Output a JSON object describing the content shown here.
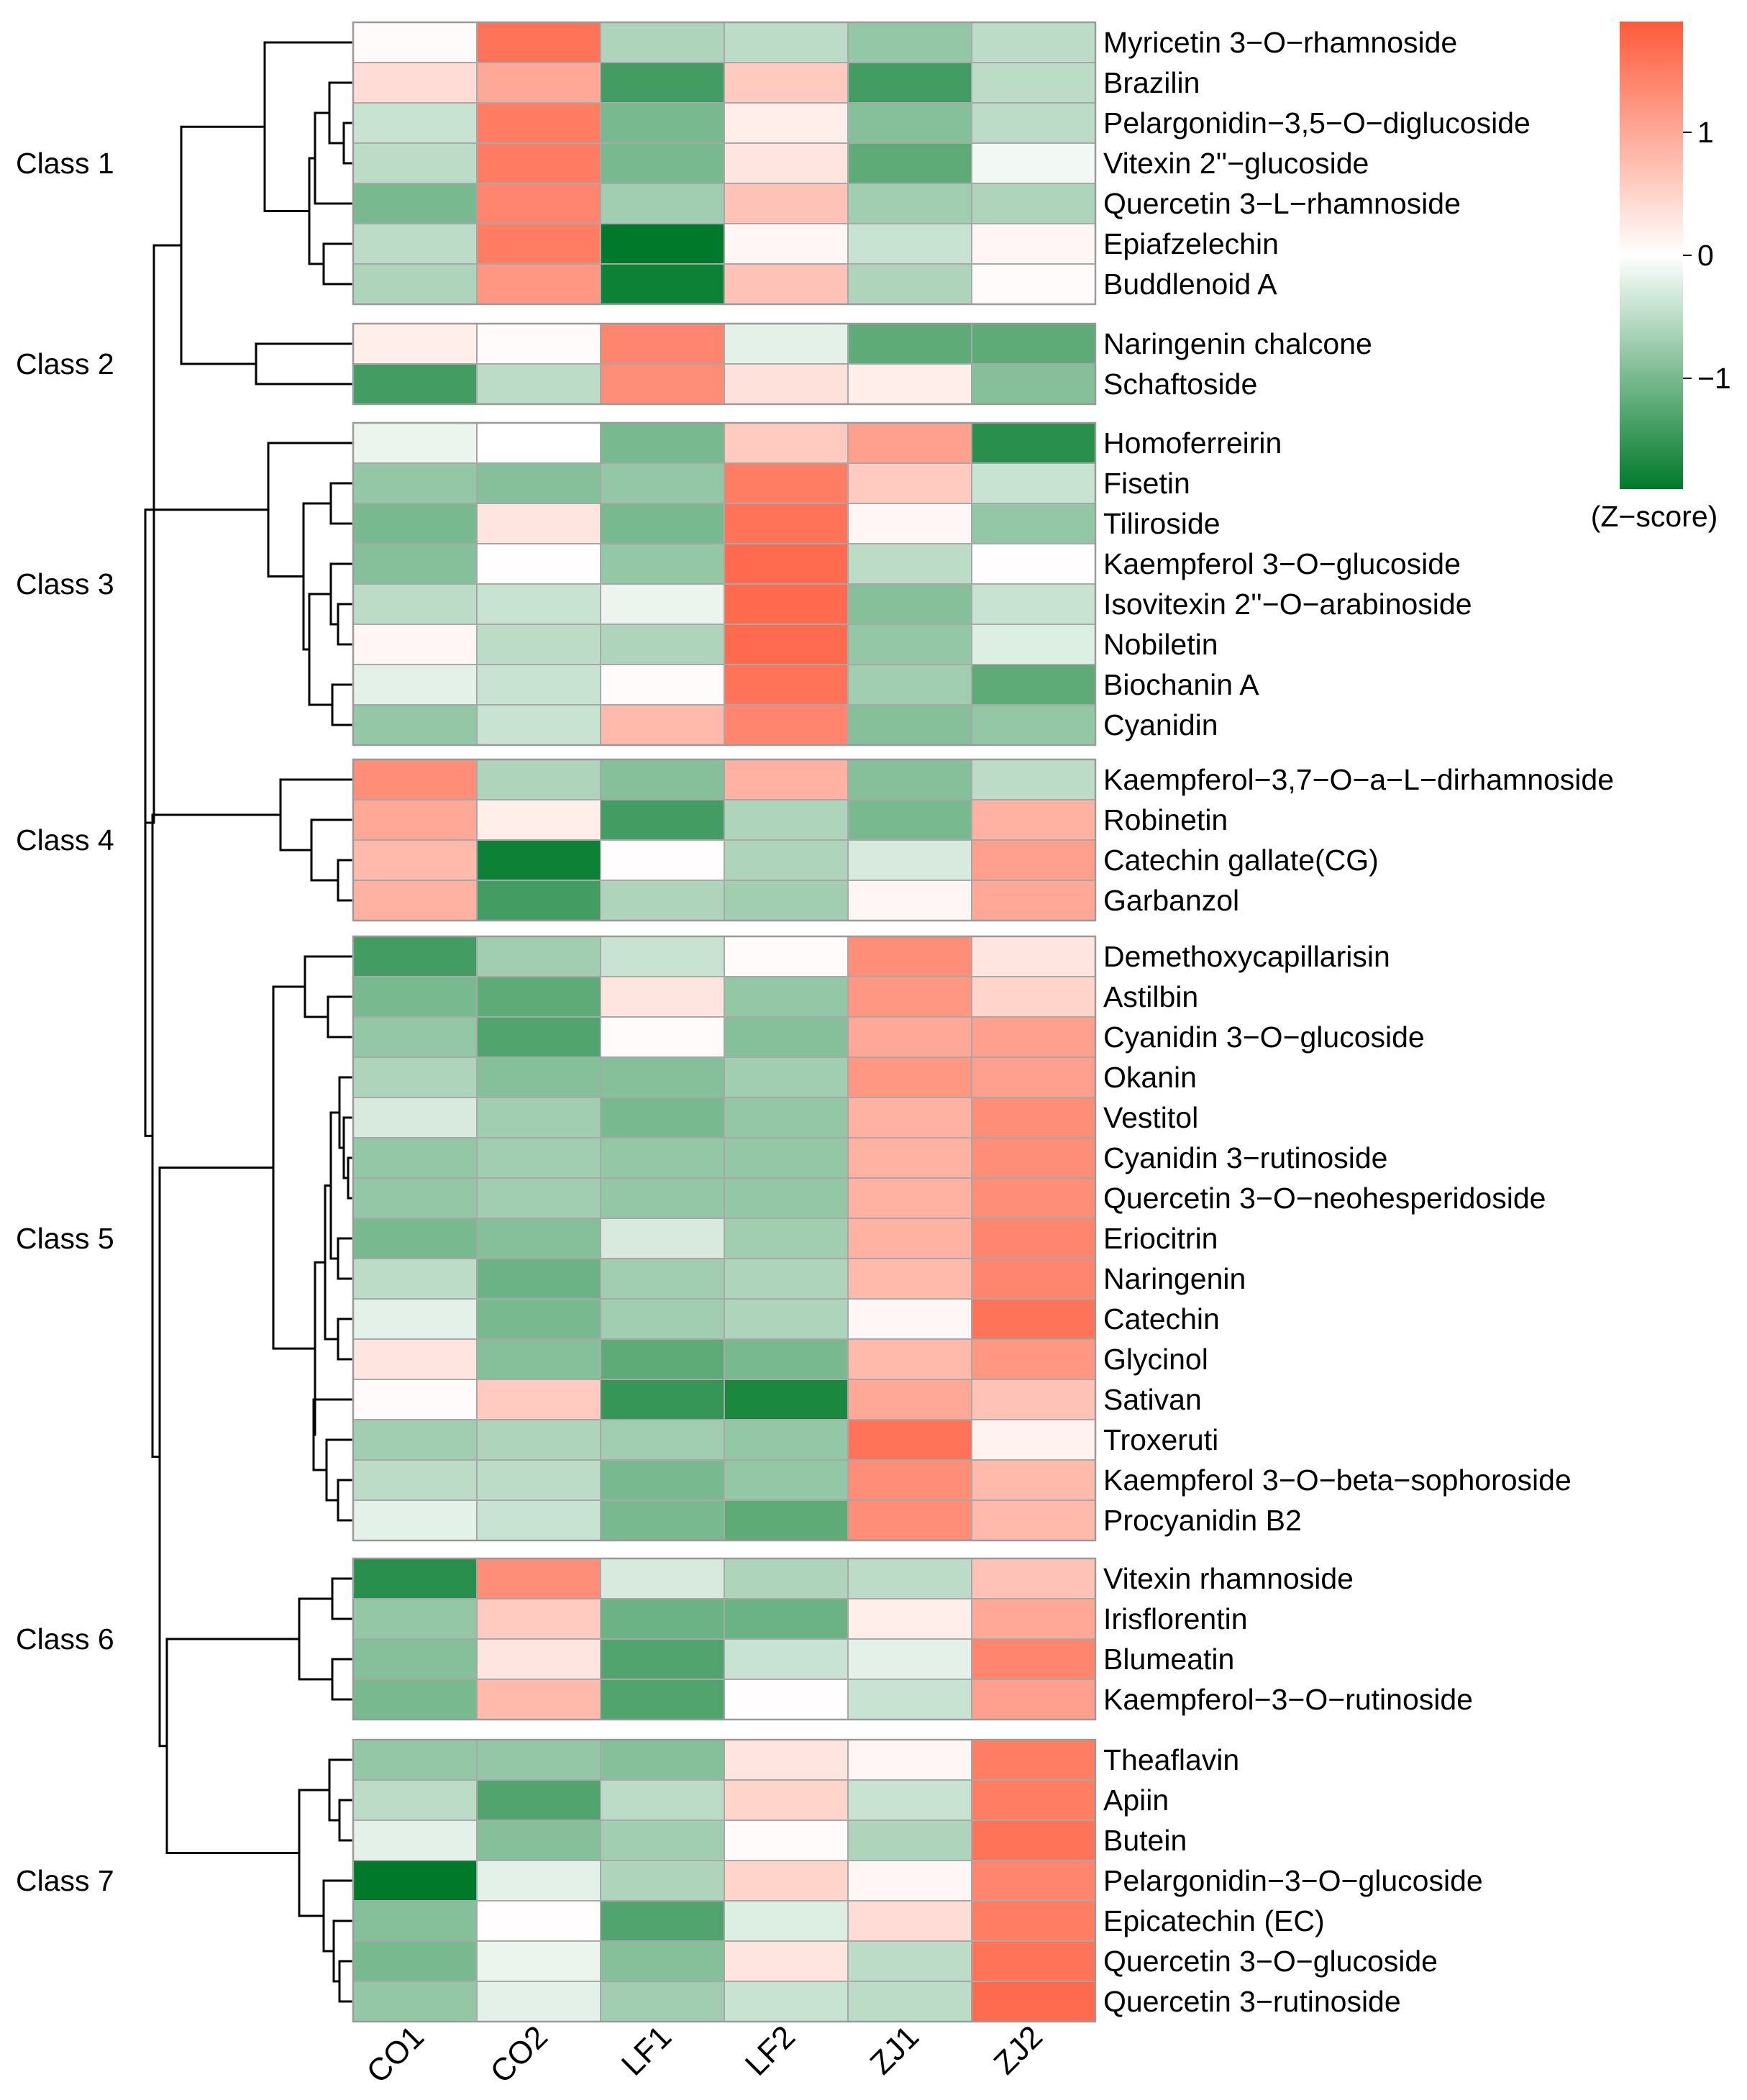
{
  "chart_data": {
    "type": "heatmap",
    "title": "",
    "legend": {
      "title": "(Z−score)",
      "ticks": [
        {
          "value": 1,
          "label": "1"
        },
        {
          "value": 0,
          "label": "0"
        },
        {
          "value": -1,
          "label": "−1"
        }
      ],
      "range": [
        -1.9,
        1.9
      ],
      "colors": {
        "low": "#007a2a",
        "mid": "#ffffff",
        "high": "#ff5a3a"
      }
    },
    "columns": [
      "CO1",
      "CO2",
      "LF1",
      "LF2",
      "ZJ1",
      "ZJ2"
    ],
    "groups": [
      {
        "label": "Class 1",
        "rows": [
          {
            "name": "Myricetin 3−O−rhamnoside",
            "values": [
              0.05,
              1.6,
              -0.6,
              -0.5,
              -0.8,
              -0.5
            ]
          },
          {
            "name": "Brazilin",
            "values": [
              0.4,
              1.0,
              -1.4,
              0.6,
              -1.4,
              -0.5
            ]
          },
          {
            "name": "Pelargonidin−3,5−O−diglucoside",
            "values": [
              -0.4,
              1.5,
              -1.0,
              0.2,
              -0.9,
              -0.5
            ]
          },
          {
            "name": "Vitexin 2''−glucoside",
            "values": [
              -0.5,
              1.5,
              -1.0,
              0.3,
              -1.2,
              -0.1
            ]
          },
          {
            "name": "Quercetin 3−L−rhamnoside",
            "values": [
              -1.0,
              1.4,
              -0.7,
              0.7,
              -0.7,
              -0.6
            ]
          },
          {
            "name": "Epiafzelechin",
            "values": [
              -0.5,
              1.5,
              -1.9,
              0.1,
              -0.4,
              0.1
            ]
          },
          {
            "name": "Buddlenoid A",
            "values": [
              -0.6,
              1.2,
              -1.8,
              0.7,
              -0.6,
              0.05
            ]
          }
        ]
      },
      {
        "label": "Class 2",
        "rows": [
          {
            "name": "Naringenin chalcone",
            "values": [
              0.2,
              0.05,
              1.4,
              -0.2,
              -1.2,
              -1.2
            ]
          },
          {
            "name": "Schaftoside",
            "values": [
              -1.4,
              -0.5,
              1.3,
              0.35,
              0.2,
              -0.9
            ]
          }
        ]
      },
      {
        "label": "Class 3",
        "rows": [
          {
            "name": "Homoferreirin",
            "values": [
              -0.15,
              0.0,
              -1.0,
              0.6,
              1.1,
              -1.6
            ]
          },
          {
            "name": "Fisetin",
            "values": [
              -0.8,
              -0.9,
              -0.8,
              1.5,
              0.6,
              -0.4
            ]
          },
          {
            "name": "Tiliroside",
            "values": [
              -1.0,
              0.3,
              -1.0,
              1.6,
              0.1,
              -0.8
            ]
          },
          {
            "name": "Kaempferol 3−O−glucoside",
            "values": [
              -0.9,
              0.02,
              -0.8,
              1.7,
              -0.5,
              0.02
            ]
          },
          {
            "name": "Isovitexin 2''−O−arabinoside",
            "values": [
              -0.5,
              -0.4,
              -0.15,
              1.7,
              -0.9,
              -0.4
            ]
          },
          {
            "name": "Nobiletin",
            "values": [
              0.1,
              -0.5,
              -0.6,
              1.7,
              -0.8,
              -0.25
            ]
          },
          {
            "name": "Biochanin A",
            "values": [
              -0.2,
              -0.4,
              0.05,
              1.6,
              -0.7,
              -1.2
            ]
          },
          {
            "name": "Cyanidin",
            "values": [
              -0.8,
              -0.4,
              0.8,
              1.4,
              -0.9,
              -0.8
            ]
          }
        ]
      },
      {
        "label": "Class 4",
        "rows": [
          {
            "name": "Kaempferol−3,7−O−a−L−dirhamnoside",
            "values": [
              1.3,
              -0.6,
              -0.9,
              0.9,
              -0.9,
              -0.5
            ]
          },
          {
            "name": "Robinetin",
            "values": [
              1.0,
              0.2,
              -1.4,
              -0.6,
              -1.0,
              0.9
            ]
          },
          {
            "name": "Catechin gallate(CG)",
            "values": [
              0.8,
              -1.8,
              0.02,
              -0.6,
              -0.3,
              1.1
            ]
          },
          {
            "name": "Garbanzol",
            "values": [
              0.9,
              -1.4,
              -0.6,
              -0.7,
              0.1,
              1.0
            ]
          }
        ]
      },
      {
        "label": "Class 5",
        "rows": [
          {
            "name": "Demethoxycapillarisin",
            "values": [
              -1.4,
              -0.7,
              -0.4,
              0.05,
              1.3,
              0.3
            ]
          },
          {
            "name": "Astilbin",
            "values": [
              -1.0,
              -1.2,
              0.3,
              -0.8,
              1.2,
              0.5
            ]
          },
          {
            "name": "Cyanidin 3−O−glucoside",
            "values": [
              -0.8,
              -1.3,
              0.05,
              -0.9,
              1.0,
              1.1
            ]
          },
          {
            "name": "Okanin",
            "values": [
              -0.6,
              -0.9,
              -0.9,
              -0.7,
              1.2,
              1.1
            ]
          },
          {
            "name": "Vestitol",
            "values": [
              -0.3,
              -0.7,
              -1.0,
              -0.8,
              0.9,
              1.3
            ]
          },
          {
            "name": "Cyanidin 3−rutinoside",
            "values": [
              -0.8,
              -0.7,
              -0.8,
              -0.8,
              0.9,
              1.3
            ]
          },
          {
            "name": "Quercetin 3−O−neohesperidoside",
            "values": [
              -0.8,
              -0.7,
              -0.8,
              -0.8,
              0.9,
              1.3
            ]
          },
          {
            "name": "Eriocitrin",
            "values": [
              -1.0,
              -0.9,
              -0.3,
              -0.7,
              0.9,
              1.4
            ]
          },
          {
            "name": "Naringenin",
            "values": [
              -0.5,
              -1.1,
              -0.7,
              -0.6,
              0.8,
              1.4
            ]
          },
          {
            "name": "Catechin",
            "values": [
              -0.2,
              -1.0,
              -0.7,
              -0.6,
              0.1,
              1.6
            ]
          },
          {
            "name": "Glycinol",
            "values": [
              0.3,
              -0.9,
              -1.2,
              -1.0,
              0.8,
              1.2
            ]
          },
          {
            "name": "Sativan",
            "values": [
              0.05,
              0.6,
              -1.5,
              -1.7,
              1.0,
              0.7
            ]
          },
          {
            "name": "Troxeruti",
            "values": [
              -0.7,
              -0.6,
              -0.7,
              -0.8,
              1.6,
              0.15
            ]
          },
          {
            "name": "Kaempferol 3−O−beta−sophoroside",
            "values": [
              -0.5,
              -0.5,
              -1.0,
              -0.8,
              1.3,
              0.8
            ]
          },
          {
            "name": "Procyanidin B2",
            "values": [
              -0.2,
              -0.4,
              -1.0,
              -1.2,
              1.3,
              0.8
            ]
          }
        ]
      },
      {
        "label": "Class 6",
        "rows": [
          {
            "name": "Vitexin rhamnoside",
            "values": [
              -1.6,
              1.3,
              -0.3,
              -0.6,
              -0.5,
              0.7
            ]
          },
          {
            "name": "Irisflorentin",
            "values": [
              -0.8,
              0.6,
              -1.1,
              -1.1,
              0.2,
              1.0
            ]
          },
          {
            "name": "Blumeatin",
            "values": [
              -0.9,
              0.3,
              -1.3,
              -0.4,
              -0.2,
              1.4
            ]
          },
          {
            "name": "Kaempferol−3−O−rutinoside",
            "values": [
              -1.0,
              0.8,
              -1.3,
              0.02,
              -0.4,
              1.1
            ]
          }
        ]
      },
      {
        "label": "Class 7",
        "rows": [
          {
            "name": "Theaflavin",
            "values": [
              -0.8,
              -0.8,
              -0.9,
              0.3,
              0.1,
              1.5
            ]
          },
          {
            "name": "Apiin",
            "values": [
              -0.5,
              -1.3,
              -0.5,
              0.5,
              -0.4,
              1.5
            ]
          },
          {
            "name": "Butein",
            "values": [
              -0.2,
              -0.9,
              -0.7,
              0.05,
              -0.6,
              1.6
            ]
          },
          {
            "name": "Pelargonidin−3−O−glucoside",
            "values": [
              -1.9,
              -0.2,
              -0.6,
              0.5,
              0.1,
              1.4
            ]
          },
          {
            "name": "Epicatechin (EC)",
            "values": [
              -0.9,
              0.02,
              -1.3,
              -0.25,
              0.4,
              1.5
            ]
          },
          {
            "name": "Quercetin 3−O−glucoside",
            "values": [
              -1.0,
              -0.15,
              -0.9,
              0.3,
              -0.5,
              1.6
            ]
          },
          {
            "name": "Quercetin 3−rutinoside",
            "values": [
              -0.8,
              -0.2,
              -0.7,
              -0.4,
              -0.5,
              1.7
            ]
          }
        ]
      }
    ]
  }
}
